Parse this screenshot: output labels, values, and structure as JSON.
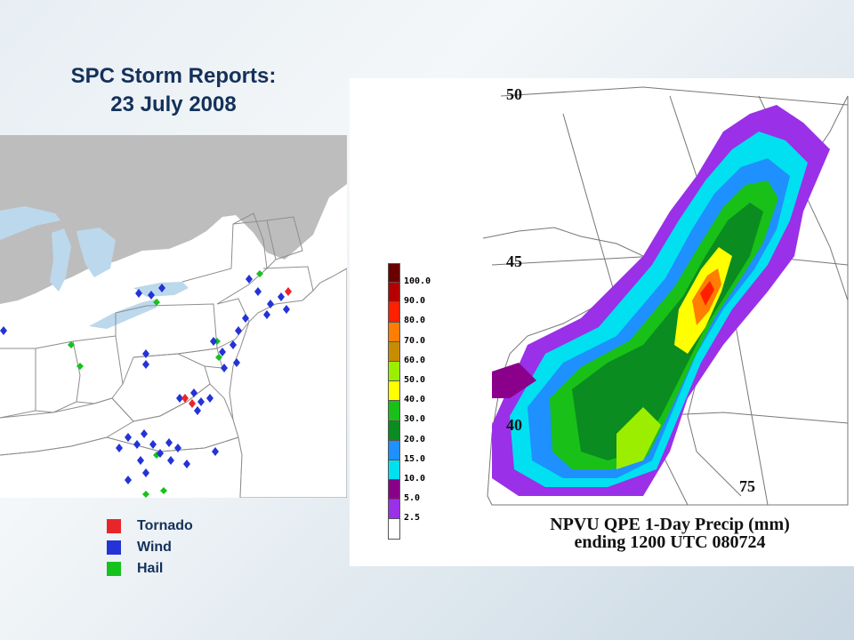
{
  "title": {
    "line1": "SPC Storm Reports:",
    "line2": "23 July 2008"
  },
  "legend": [
    {
      "label": "Tornado",
      "color": "#e8262a"
    },
    {
      "label": "Wind",
      "color": "#2433d6"
    },
    {
      "label": "Hail",
      "color": "#15c21d"
    }
  ],
  "precip_map": {
    "title_line1": "NPVU QPE 1-Day Precip (mm)",
    "title_line2": "ending 1200 UTC 080724",
    "latitude_labels": [
      "50",
      "45",
      "40"
    ],
    "longitude_label": "75",
    "colorbar": [
      {
        "label": "100.0",
        "color": "#6b0000"
      },
      {
        "label": "90.0",
        "color": "#b40000"
      },
      {
        "label": "80.0",
        "color": "#ff2000"
      },
      {
        "label": "70.0",
        "color": "#ff7d00"
      },
      {
        "label": "60.0",
        "color": "#c88c00"
      },
      {
        "label": "50.0",
        "color": "#9bee00"
      },
      {
        "label": "40.0",
        "color": "#ffff00"
      },
      {
        "label": "30.0",
        "color": "#18c018"
      },
      {
        "label": "20.0",
        "color": "#0a8c20"
      },
      {
        "label": "15.0",
        "color": "#1e90ff"
      },
      {
        "label": "10.0",
        "color": "#00e0f0"
      },
      {
        "label": "5.0",
        "color": "#8a008a"
      },
      {
        "label": "2.5",
        "color": "#9a30e8"
      },
      {
        "label": "",
        "color": "#ffffff"
      }
    ]
  }
}
